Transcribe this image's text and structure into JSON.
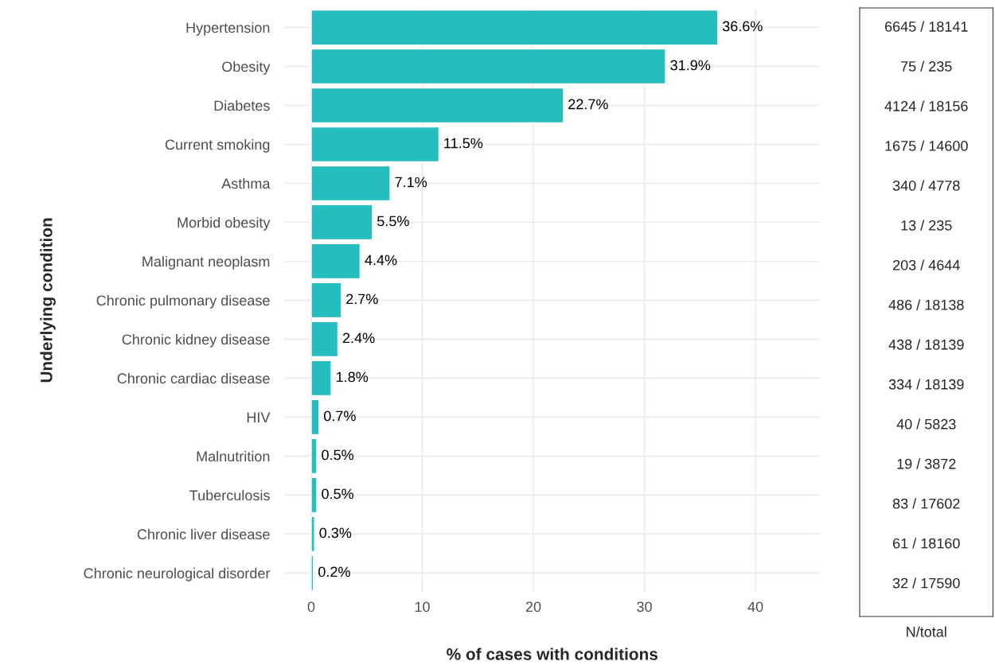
{
  "chart_data": {
    "type": "bar",
    "orientation": "horizontal",
    "xlabel": "% of cases with conditions",
    "ylabel": "Underlying condition",
    "categories": [
      "Hypertension",
      "Obesity",
      "Diabetes",
      "Current smoking",
      "Asthma",
      "Morbid obesity",
      "Malignant neoplasm",
      "Chronic pulmonary disease",
      "Chronic kidney disease",
      "Chronic cardiac disease",
      "HIV",
      "Malnutrition",
      "Tuberculosis",
      "Chronic liver disease",
      "Chronic neurological disorder"
    ],
    "values": [
      36.6,
      31.9,
      22.7,
      11.5,
      7.1,
      5.5,
      4.4,
      2.7,
      2.4,
      1.8,
      0.7,
      0.5,
      0.5,
      0.3,
      0.2
    ],
    "value_labels": [
      "36.6%",
      "31.9%",
      "22.7%",
      "11.5%",
      "7.1%",
      "5.5%",
      "4.4%",
      "2.7%",
      "2.4%",
      "1.8%",
      "0.7%",
      "0.5%",
      "0.5%",
      "0.3%",
      "0.2%"
    ],
    "color": "#26bdbe",
    "xlim": [
      -2.4,
      45.8
    ],
    "xticks": [
      0,
      10,
      20,
      30,
      40
    ],
    "grid": true,
    "annotations": [
      "6645 / 18141",
      "75 / 235",
      "4124 / 18156",
      "1675 / 14600",
      "340 / 4778",
      "13 / 235",
      "203 / 4644",
      "486 / 18138",
      "438 / 18139",
      "334 / 18139",
      "40 / 5823",
      "19 / 3872",
      "83 / 17602",
      "61 / 18160",
      "32 / 17590",
      "N/total"
    ]
  }
}
